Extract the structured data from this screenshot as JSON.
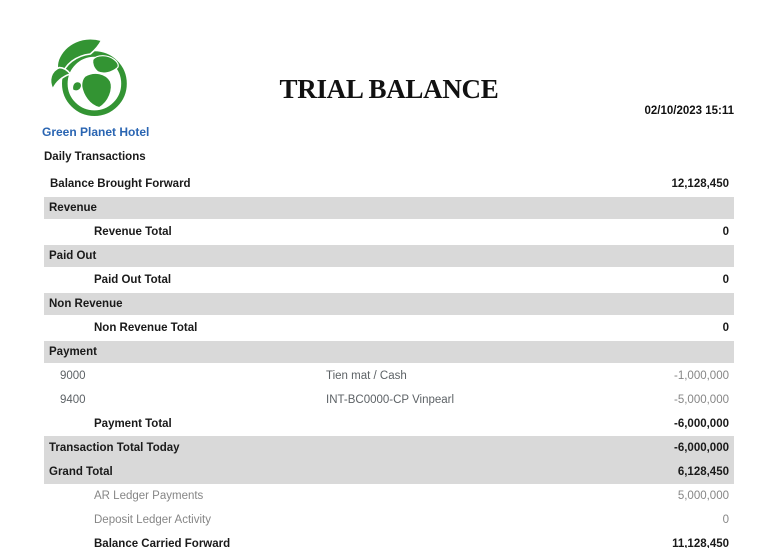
{
  "theme": {
    "brand_green": "#339433",
    "brand_blue": "#2a65b2",
    "band_bg": "#d9d9d9"
  },
  "header": {
    "logo_icon": "earth-leaf-logo-icon",
    "logo_label": "Green Planet Hotel",
    "title": "TRIAL BALANCE",
    "datetime": "02/10/2023 15:11"
  },
  "report": {
    "section_label": "Daily Transactions",
    "rows": [
      {
        "type": "bbf",
        "label": "Balance Brought Forward",
        "value": "12,128,450"
      },
      {
        "type": "band",
        "label": "Revenue"
      },
      {
        "type": "total",
        "label": "Revenue Total",
        "value": "0"
      },
      {
        "type": "band",
        "label": "Paid Out"
      },
      {
        "type": "total",
        "label": "Paid Out Total",
        "value": "0"
      },
      {
        "type": "band",
        "label": "Non Revenue"
      },
      {
        "type": "total",
        "label": "Non Revenue Total",
        "value": "0"
      },
      {
        "type": "band",
        "label": "Payment"
      },
      {
        "type": "detail",
        "code": "9000",
        "desc": "Tien mat / Cash",
        "value": "-1,000,000"
      },
      {
        "type": "detail",
        "code": "9400",
        "desc": "INT-BC0000-CP Vinpearl",
        "value": "-5,000,000"
      },
      {
        "type": "total",
        "label": "Payment Total",
        "value": "-6,000,000"
      },
      {
        "type": "bandtotal",
        "label": "Transaction Total Today",
        "value": "-6,000,000"
      },
      {
        "type": "bandtotal",
        "label": "Grand Total",
        "value": "6,128,450"
      },
      {
        "type": "ledger",
        "label": "AR Ledger Payments",
        "value": "5,000,000"
      },
      {
        "type": "ledger",
        "label": "Deposit Ledger Activity",
        "value": "0"
      },
      {
        "type": "total",
        "label": "Balance Carried Forward",
        "value": "11,128,450"
      }
    ]
  }
}
